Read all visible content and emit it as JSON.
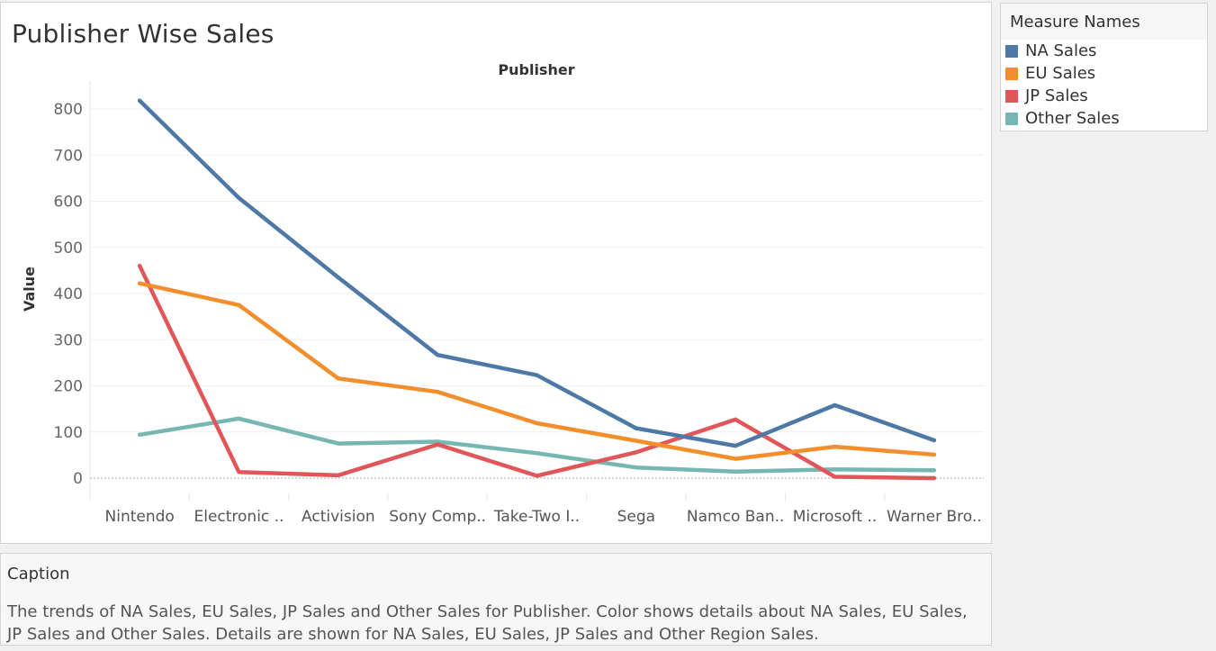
{
  "page": {
    "title": "Publisher Wise Sales"
  },
  "legend": {
    "title": "Measure Names",
    "items": [
      {
        "label": "NA Sales",
        "color": "#4e79a7"
      },
      {
        "label": "EU Sales",
        "color": "#f28e2b"
      },
      {
        "label": "JP Sales",
        "color": "#e15759"
      },
      {
        "label": "Other Sales",
        "color": "#76b7b2"
      }
    ]
  },
  "caption": {
    "title": "Caption",
    "text": "The trends of NA Sales, EU Sales, JP Sales and Other Sales for Publisher.  Color shows details about NA Sales, EU Sales, JP Sales and Other Sales.  Details are shown for NA Sales, EU Sales, JP Sales and Other Region Sales."
  },
  "chart_data": {
    "type": "line",
    "title": "Publisher Wise Sales",
    "xlabel": "Publisher",
    "ylabel": "Value",
    "categories": [
      "Nintendo",
      "Electronic ..",
      "Activision",
      "Sony Comp..",
      "Take-Two I..",
      "Sega",
      "Namco Ban..",
      "Microsoft ..",
      "Warner Bro.."
    ],
    "yticks": [
      0,
      100,
      200,
      300,
      400,
      500,
      600,
      700,
      800
    ],
    "ylim": [
      -40,
      860
    ],
    "grid": true,
    "legend_position": "right",
    "series": [
      {
        "name": "NA Sales",
        "color": "#4e79a7",
        "values": [
          818,
          607,
          435,
          267,
          223,
          108,
          70,
          158,
          82
        ]
      },
      {
        "name": "EU Sales",
        "color": "#f28e2b",
        "values": [
          422,
          375,
          216,
          187,
          119,
          81,
          42,
          68,
          51
        ]
      },
      {
        "name": "JP Sales",
        "color": "#e15759",
        "values": [
          460,
          13,
          6,
          73,
          5,
          56,
          127,
          3,
          0
        ]
      },
      {
        "name": "Other Sales",
        "color": "#76b7b2",
        "values": [
          94,
          129,
          75,
          79,
          54,
          23,
          14,
          19,
          17
        ]
      }
    ]
  }
}
